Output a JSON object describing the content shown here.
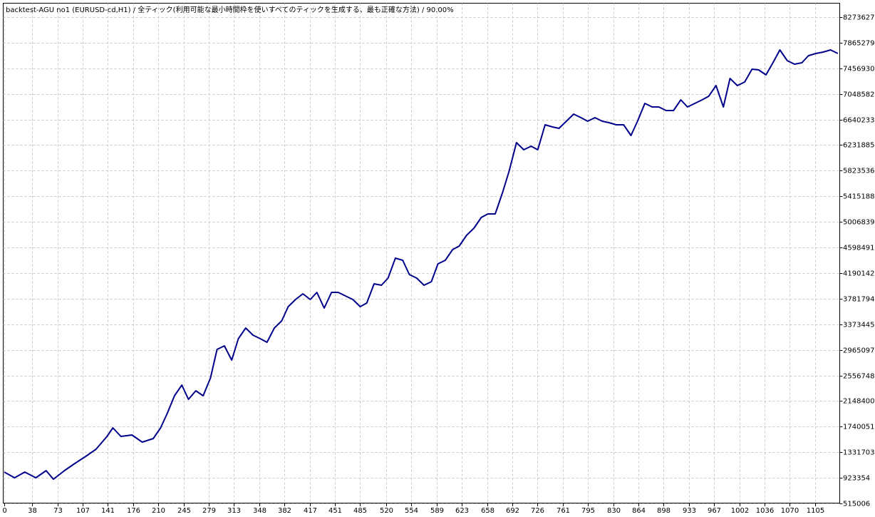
{
  "chart_data": {
    "type": "line",
    "title": "backtest-AGU no1 (EURUSD-cd,H1) / 全ティック(利用可能な最小時間枠を使いすべてのティックを生成する、最も正確な方法) / 90.00%",
    "x": [
      0,
      14,
      28,
      43,
      57,
      67,
      82,
      96,
      111,
      125,
      140,
      148,
      159,
      174,
      188,
      203,
      213,
      222,
      232,
      242,
      251,
      261,
      271,
      281,
      290,
      300,
      310,
      319,
      329,
      339,
      349,
      358,
      368,
      378,
      387,
      397,
      407,
      417,
      426,
      436,
      446,
      455,
      465,
      475,
      485,
      494,
      504,
      514,
      523,
      533,
      543,
      552,
      562,
      572,
      582,
      591,
      601,
      611,
      620,
      630,
      640,
      650,
      659,
      669,
      679,
      688,
      698,
      708,
      718,
      727,
      737,
      747,
      756,
      766,
      776,
      786,
      795,
      805,
      815,
      824,
      834,
      844,
      854,
      863,
      873,
      883,
      892,
      902,
      912,
      922,
      931,
      941,
      951,
      960,
      970,
      980,
      989,
      999,
      1009,
      1019,
      1028,
      1038,
      1048,
      1057,
      1067,
      1077,
      1087,
      1096,
      1106,
      1116,
      1126,
      1136
    ],
    "series": [
      {
        "color": "#00008b",
        "values": [
          1015500,
          924500,
          1015500,
          924500,
          1038300,
          901800,
          1038300,
          1152000,
          1265800,
          1379500,
          1584300,
          1720800,
          1584300,
          1607000,
          1493300,
          1550100,
          1720800,
          1948300,
          2232600,
          2403300,
          2175800,
          2312300,
          2232600,
          2517000,
          2972000,
          3028900,
          2801400,
          3142600,
          3313300,
          3199500,
          3142600,
          3085800,
          3313300,
          3427000,
          3654500,
          3768300,
          3859300,
          3768300,
          3882000,
          3631800,
          3882000,
          3882000,
          3825100,
          3768300,
          3654500,
          3711400,
          4018500,
          3995800,
          4109500,
          4428000,
          4393900,
          4166400,
          4109500,
          3995800,
          4052600,
          4337000,
          4393900,
          4564500,
          4621400,
          4792000,
          4905800,
          5076400,
          5133300,
          5133300,
          5474500,
          5815800,
          6270800,
          6157000,
          6213900,
          6157000,
          6555100,
          6521000,
          6498300,
          6612000,
          6725800,
          6668900,
          6612000,
          6668900,
          6612000,
          6589300,
          6555100,
          6555100,
          6384500,
          6612000,
          6896400,
          6839500,
          6839500,
          6782600,
          6782600,
          6953300,
          6839500,
          6896400,
          6953300,
          7010100,
          7180800,
          6839500,
          7294500,
          7180800,
          7237600,
          7442400,
          7431000,
          7351400,
          7556100,
          7749500,
          7578900,
          7522000,
          7544800,
          7658500,
          7692600,
          7715400,
          7749500,
          7692600
        ]
      }
    ],
    "xlim": [
      0,
      1140
    ],
    "xticks": [
      0,
      38,
      73,
      107,
      141,
      176,
      210,
      245,
      279,
      313,
      348,
      382,
      417,
      451,
      485,
      520,
      554,
      589,
      623,
      658,
      692,
      726,
      761,
      795,
      830,
      864,
      898,
      933,
      967,
      1002,
      1036,
      1070,
      1105
    ],
    "ylim": [
      515006,
      8488900
    ],
    "yticks": [
      515006,
      923354,
      1331703,
      1740051,
      2148400,
      2556748,
      2965097,
      3373445,
      3781794,
      4190142,
      4598491,
      5006839,
      5415188,
      5823536,
      6231885,
      6640233,
      7048582,
      7456930,
      7865279,
      8273627
    ],
    "grid": true
  }
}
